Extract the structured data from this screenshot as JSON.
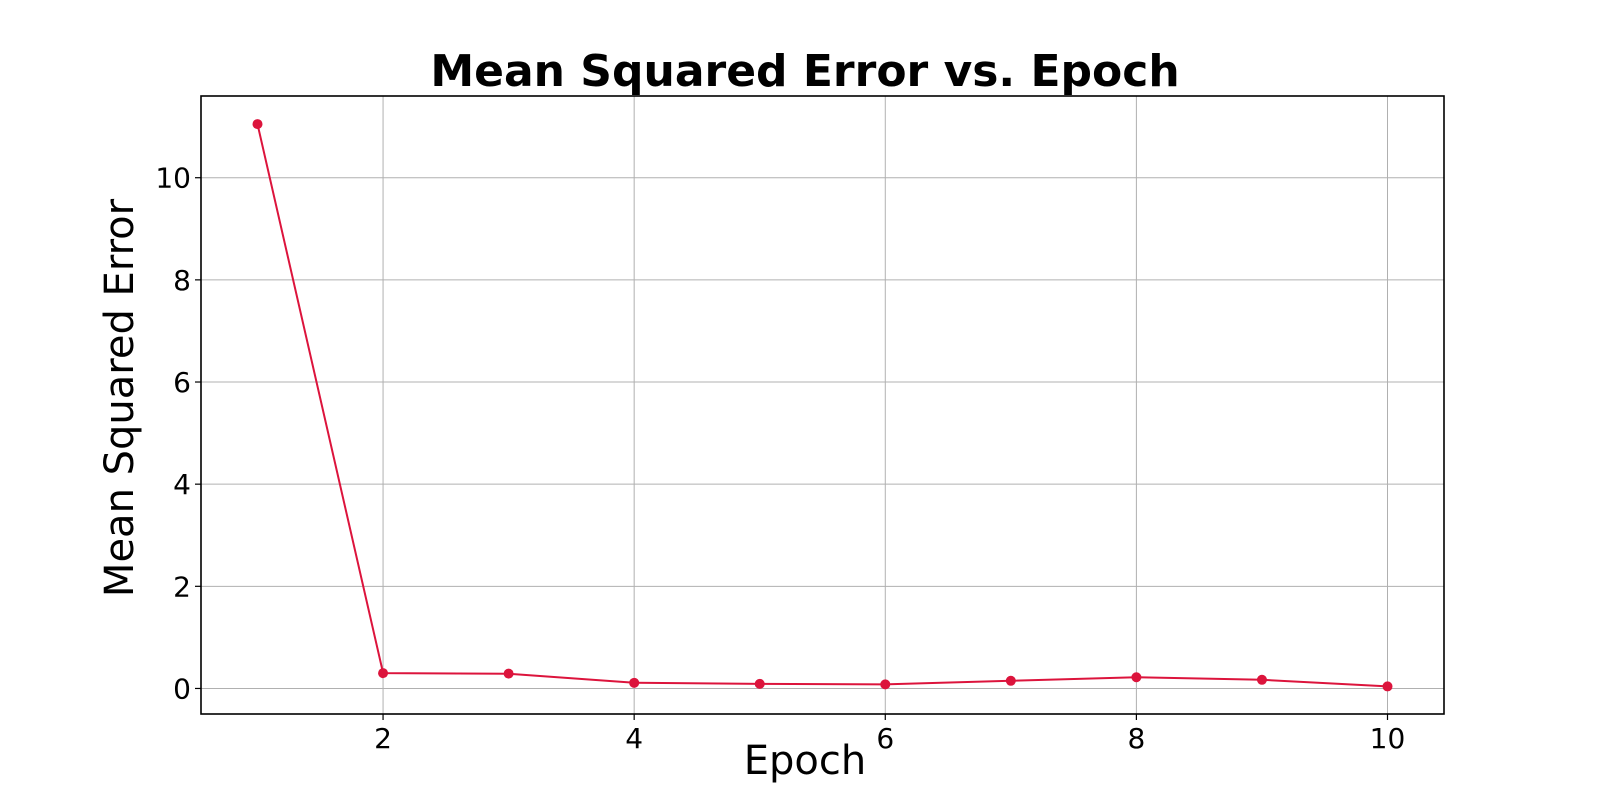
{
  "chart_data": {
    "type": "line",
    "title": "Mean Squared Error vs. Epoch",
    "xlabel": "Epoch",
    "ylabel": "Mean Squared Error",
    "xlim": [
      0.55,
      10.45
    ],
    "ylim": [
      -0.5,
      11.6
    ],
    "xticks": [
      2,
      4,
      6,
      8,
      10
    ],
    "yticks": [
      0,
      2,
      4,
      6,
      8,
      10
    ],
    "grid": true,
    "series": [
      {
        "color": "#dc143c",
        "marker": "circle",
        "x": [
          1,
          2,
          3,
          4,
          5,
          6,
          7,
          8,
          9,
          10
        ],
        "y": [
          11.05,
          0.3,
          0.29,
          0.11,
          0.09,
          0.08,
          0.15,
          0.22,
          0.17,
          0.04
        ]
      }
    ]
  }
}
